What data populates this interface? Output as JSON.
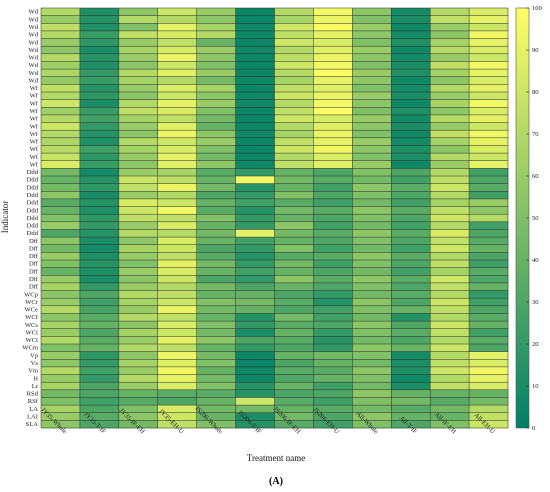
{
  "panel_label": "(A)",
  "chart_data": {
    "type": "heatmap",
    "xlabel": "Treatment name",
    "ylabel": "Indicator",
    "x_categories": [
      "JY35-Whole",
      "JY35-T-IF",
      "JY35-IF-EH",
      "JY35-EH-U",
      "JS206-Whole",
      "JS206-T-IF",
      "JS206-IF-EH",
      "JS206-EH-U",
      "All-Whole",
      "All-T-IF",
      "All-IF-EH",
      "All-EH-U"
    ],
    "y_categories": [
      "Wd",
      "Wd",
      "Wd",
      "Wd",
      "Wd",
      "Wd",
      "Wd",
      "Wd",
      "Wd",
      "Wd",
      "Wf",
      "Wf",
      "Wf",
      "Wf",
      "Wf",
      "Wf",
      "Wf",
      "Wf",
      "Wf",
      "Wf",
      "Wf",
      "Ddd",
      "Ddd",
      "Ddd",
      "Ddd",
      "Ddd",
      "Ddd",
      "Ddd",
      "Ddd",
      "Ddd",
      "Dff",
      "Dff",
      "Dff",
      "Dff",
      "Dff",
      "Dff",
      "Dff",
      "WCp",
      "WCr",
      "WCe",
      "WCf",
      "WCs",
      "WCt",
      "WCt",
      "WCm",
      "Vp",
      "Vs",
      "Vm",
      "H",
      "Lr",
      "RSd",
      "RSf",
      "LA",
      "LAI",
      "SLA"
    ],
    "colorbar": {
      "min": 0,
      "max": 100,
      "ticks": [
        0,
        10,
        20,
        30,
        40,
        50,
        60,
        70,
        80,
        90,
        100
      ],
      "colormap": "summer"
    },
    "column_profiles": [
      [
        70,
        60,
        75,
        70,
        60,
        55,
        70,
        62,
        68,
        58,
        75,
        70,
        80,
        62,
        70,
        80,
        70,
        68,
        72,
        78,
        85,
        45,
        40,
        45,
        55,
        35,
        40,
        50,
        60,
        30,
        55,
        45,
        60,
        50,
        40,
        60,
        65,
        55,
        60,
        70,
        55,
        65,
        60,
        70,
        50,
        60,
        55,
        70,
        60,
        65,
        45,
        50,
        65,
        60,
        55
      ],
      [
        12,
        14,
        12,
        22,
        18,
        10,
        15,
        12,
        20,
        22,
        15,
        18,
        10,
        22,
        25,
        20,
        15,
        12,
        25,
        18,
        22,
        8,
        15,
        18,
        10,
        15,
        12,
        18,
        20,
        15,
        10,
        8,
        12,
        15,
        12,
        10,
        20,
        30,
        25,
        28,
        35,
        40,
        30,
        35,
        40,
        18,
        20,
        25,
        20,
        30,
        30,
        25,
        30,
        35,
        30
      ],
      [
        55,
        70,
        50,
        75,
        60,
        65,
        60,
        55,
        70,
        65,
        60,
        55,
        70,
        75,
        65,
        60,
        55,
        70,
        65,
        60,
        55,
        60,
        80,
        75,
        60,
        85,
        80,
        75,
        60,
        70,
        55,
        65,
        60,
        50,
        60,
        55,
        60,
        70,
        65,
        60,
        70,
        55,
        65,
        60,
        70,
        55,
        65,
        60,
        70,
        60,
        40,
        35,
        50,
        55,
        45
      ],
      [
        80,
        70,
        90,
        85,
        75,
        85,
        92,
        80,
        88,
        70,
        85,
        80,
        90,
        85,
        75,
        88,
        92,
        80,
        85,
        90,
        88,
        65,
        75,
        92,
        70,
        80,
        95,
        75,
        85,
        70,
        85,
        80,
        75,
        90,
        85,
        80,
        70,
        75,
        80,
        92,
        75,
        85,
        80,
        90,
        75,
        92,
        88,
        95,
        90,
        85,
        35,
        30,
        85,
        80,
        75
      ],
      [
        60,
        55,
        65,
        70,
        40,
        60,
        55,
        50,
        60,
        45,
        65,
        55,
        60,
        50,
        45,
        40,
        55,
        60,
        50,
        45,
        55,
        35,
        40,
        45,
        30,
        40,
        35,
        50,
        40,
        45,
        40,
        30,
        35,
        45,
        40,
        30,
        45,
        40,
        50,
        45,
        40,
        50,
        45,
        55,
        40,
        45,
        50,
        40,
        45,
        50,
        35,
        40,
        45,
        40,
        50
      ],
      [
        5,
        4,
        6,
        5,
        4,
        6,
        5,
        4,
        5,
        6,
        4,
        5,
        6,
        5,
        4,
        5,
        6,
        5,
        4,
        5,
        6,
        20,
        95,
        15,
        20,
        25,
        15,
        20,
        20,
        90,
        25,
        20,
        15,
        20,
        25,
        20,
        30,
        40,
        45,
        40,
        15,
        20,
        10,
        30,
        20,
        5,
        4,
        6,
        5,
        15,
        15,
        80,
        45,
        10,
        15
      ],
      [
        70,
        65,
        80,
        75,
        80,
        70,
        75,
        80,
        70,
        65,
        75,
        80,
        70,
        75,
        80,
        70,
        65,
        75,
        80,
        70,
        75,
        40,
        45,
        40,
        50,
        35,
        45,
        40,
        55,
        45,
        40,
        50,
        35,
        45,
        40,
        55,
        40,
        30,
        35,
        30,
        45,
        35,
        40,
        35,
        30,
        40,
        30,
        35,
        30,
        40,
        30,
        35,
        40,
        45,
        35
      ],
      [
        95,
        92,
        98,
        90,
        85,
        88,
        92,
        95,
        98,
        90,
        88,
        92,
        95,
        98,
        85,
        88,
        92,
        90,
        95,
        85,
        88,
        30,
        35,
        25,
        30,
        25,
        35,
        30,
        25,
        35,
        30,
        25,
        35,
        25,
        30,
        35,
        30,
        20,
        15,
        25,
        25,
        30,
        20,
        15,
        20,
        45,
        40,
        35,
        40,
        25,
        30,
        25,
        35,
        30,
        25
      ],
      [
        55,
        50,
        60,
        55,
        50,
        60,
        55,
        50,
        60,
        55,
        50,
        60,
        55,
        50,
        60,
        55,
        50,
        60,
        55,
        50,
        60,
        50,
        45,
        55,
        50,
        45,
        55,
        50,
        45,
        55,
        50,
        45,
        55,
        50,
        45,
        55,
        50,
        45,
        55,
        50,
        45,
        55,
        50,
        45,
        55,
        50,
        45,
        55,
        50,
        45,
        55,
        50,
        45,
        55,
        50
      ],
      [
        8,
        10,
        6,
        8,
        12,
        6,
        8,
        10,
        12,
        6,
        8,
        10,
        6,
        12,
        8,
        10,
        6,
        8,
        12,
        10,
        6,
        30,
        25,
        35,
        30,
        25,
        35,
        30,
        25,
        35,
        30,
        25,
        35,
        30,
        25,
        35,
        30,
        35,
        30,
        40,
        15,
        30,
        35,
        30,
        40,
        8,
        10,
        12,
        6,
        10,
        40,
        45,
        35,
        40,
        30
      ],
      [
        70,
        75,
        60,
        55,
        65,
        70,
        60,
        75,
        65,
        55,
        70,
        60,
        65,
        55,
        70,
        60,
        75,
        65,
        55,
        70,
        60,
        70,
        75,
        80,
        70,
        65,
        75,
        80,
        70,
        85,
        75,
        80,
        70,
        75,
        65,
        80,
        75,
        70,
        80,
        75,
        70,
        80,
        75,
        70,
        80,
        70,
        75,
        80,
        70,
        75,
        40,
        35,
        45,
        40,
        50
      ],
      [
        85,
        90,
        80,
        95,
        90,
        85,
        80,
        95,
        90,
        85,
        90,
        80,
        95,
        85,
        90,
        80,
        95,
        90,
        85,
        80,
        90,
        25,
        30,
        35,
        25,
        60,
        55,
        70,
        25,
        30,
        35,
        40,
        30,
        25,
        35,
        30,
        40,
        20,
        25,
        30,
        35,
        40,
        25,
        35,
        30,
        90,
        85,
        95,
        90,
        85,
        40,
        45,
        70,
        75,
        80
      ]
    ]
  }
}
